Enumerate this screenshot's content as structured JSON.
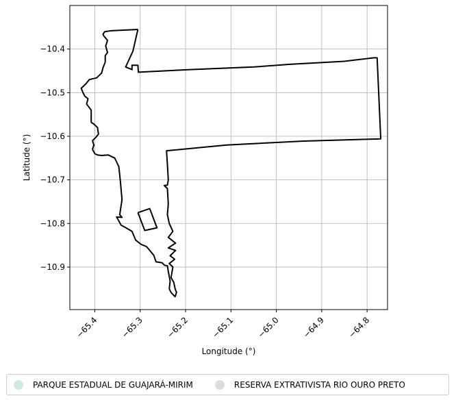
{
  "chart_data": {
    "type": "map",
    "xlabel": "Longitude (°)",
    "ylabel": "Latitude (°)",
    "xlim": [
      -65.455,
      -64.755
    ],
    "ylim": [
      -10.9975,
      -10.3
    ],
    "x_ticks": [
      -65.4,
      -65.3,
      -65.2,
      -65.1,
      -65.0,
      -64.9,
      -64.8
    ],
    "x_tick_labels": [
      "−65.4",
      "−65.3",
      "−65.2",
      "−65.1",
      "−65.0",
      "−64.9",
      "−64.8"
    ],
    "y_ticks": [
      -10.4,
      -10.5,
      -10.6,
      -10.7,
      -10.8,
      -10.9
    ],
    "y_tick_labels": [
      "−10.4",
      "−10.5",
      "−10.6",
      "−10.7",
      "−10.8",
      "−10.9"
    ],
    "grid": true,
    "legend_placement": "bottom",
    "series": [
      {
        "name": "PARQUE ESTADUAL DE GUAJARÁ-MIRIM",
        "color": "#cde9e0"
      },
      {
        "name": "RESERVA EXTRATIVISTA RIO OURO PRETO",
        "color": "#dcdcdc"
      }
    ],
    "boundaries": [
      {
        "kind": "outline",
        "coords": [
          [
            -65.305,
            -10.355
          ],
          [
            -65.316,
            -10.405
          ],
          [
            -65.332,
            -10.441
          ],
          [
            -65.318,
            -10.447
          ],
          [
            -65.318,
            -10.437
          ],
          [
            -65.305,
            -10.437
          ],
          [
            -65.304,
            -10.453
          ],
          [
            -65.19,
            -10.447
          ],
          [
            -65.05,
            -10.441
          ],
          [
            -64.97,
            -10.435
          ],
          [
            -64.85,
            -10.428
          ],
          [
            -64.785,
            -10.42
          ],
          [
            -64.778,
            -10.42
          ],
          [
            -64.77,
            -10.606
          ],
          [
            -64.94,
            -10.611
          ],
          [
            -65.11,
            -10.62
          ],
          [
            -65.24,
            -10.633
          ],
          [
            -65.242,
            -10.633
          ],
          [
            -65.24,
            -10.665
          ],
          [
            -65.238,
            -10.7
          ],
          [
            -65.24,
            -10.712
          ],
          [
            -65.247,
            -10.713
          ],
          [
            -65.24,
            -10.72
          ],
          [
            -65.238,
            -10.755
          ],
          [
            -65.24,
            -10.78
          ],
          [
            -65.236,
            -10.8
          ],
          [
            -65.228,
            -10.818
          ],
          [
            -65.238,
            -10.832
          ],
          [
            -65.222,
            -10.845
          ],
          [
            -65.238,
            -10.856
          ],
          [
            -65.222,
            -10.862
          ],
          [
            -65.234,
            -10.874
          ],
          [
            -65.224,
            -10.882
          ],
          [
            -65.236,
            -10.892
          ],
          [
            -65.228,
            -10.9
          ],
          [
            -65.232,
            -10.924
          ],
          [
            -65.226,
            -10.935
          ],
          [
            -65.223,
            -10.95
          ],
          [
            -65.22,
            -10.958
          ],
          [
            -65.223,
            -10.968
          ],
          [
            -65.228,
            -10.963
          ],
          [
            -65.232,
            -10.958
          ],
          [
            -65.236,
            -10.95
          ],
          [
            -65.234,
            -10.932
          ],
          [
            -65.238,
            -10.91
          ],
          [
            -65.24,
            -10.897
          ],
          [
            -65.246,
            -10.896
          ],
          [
            -65.252,
            -10.89
          ],
          [
            -65.265,
            -10.888
          ],
          [
            -65.27,
            -10.873
          ],
          [
            -65.286,
            -10.853
          ],
          [
            -65.298,
            -10.848
          ],
          [
            -65.31,
            -10.838
          ],
          [
            -65.318,
            -10.818
          ],
          [
            -65.333,
            -10.809
          ],
          [
            -65.342,
            -10.804
          ],
          [
            -65.352,
            -10.785
          ],
          [
            -65.34,
            -10.786
          ],
          [
            -65.345,
            -10.78
          ],
          [
            -65.34,
            -10.745
          ],
          [
            -65.344,
            -10.7
          ],
          [
            -65.347,
            -10.67
          ],
          [
            -65.356,
            -10.65
          ],
          [
            -65.37,
            -10.643
          ],
          [
            -65.385,
            -10.644
          ],
          [
            -65.394,
            -10.643
          ],
          [
            -65.4,
            -10.64
          ],
          [
            -65.405,
            -10.63
          ],
          [
            -65.402,
            -10.62
          ],
          [
            -65.405,
            -10.61
          ],
          [
            -65.397,
            -10.602
          ],
          [
            -65.392,
            -10.595
          ],
          [
            -65.394,
            -10.58
          ],
          [
            -65.402,
            -10.572
          ],
          [
            -65.408,
            -10.568
          ],
          [
            -65.408,
            -10.54
          ],
          [
            -65.418,
            -10.526
          ],
          [
            -65.415,
            -10.514
          ],
          [
            -65.422,
            -10.508
          ],
          [
            -65.426,
            -10.5
          ],
          [
            -65.43,
            -10.49
          ],
          [
            -65.42,
            -10.48
          ],
          [
            -65.412,
            -10.47
          ],
          [
            -65.396,
            -10.466
          ],
          [
            -65.385,
            -10.455
          ],
          [
            -65.382,
            -10.443
          ],
          [
            -65.377,
            -10.43
          ],
          [
            -65.377,
            -10.415
          ],
          [
            -65.372,
            -10.408
          ],
          [
            -65.376,
            -10.393
          ],
          [
            -65.372,
            -10.38
          ],
          [
            -65.38,
            -10.37
          ],
          [
            -65.382,
            -10.366
          ],
          [
            -65.378,
            -10.36
          ],
          [
            -65.364,
            -10.358
          ],
          [
            -65.305,
            -10.355
          ]
        ]
      },
      {
        "kind": "outline",
        "coords": [
          [
            -65.305,
            -10.775
          ],
          [
            -65.279,
            -10.766
          ],
          [
            -65.263,
            -10.81
          ],
          [
            -65.29,
            -10.816
          ],
          [
            -65.305,
            -10.775
          ]
        ]
      }
    ]
  },
  "legend": {
    "item1": "PARQUE ESTADUAL DE GUAJARÁ-MIRIM",
    "item2": "RESERVA EXTRATIVISTA RIO OURO PRETO"
  }
}
